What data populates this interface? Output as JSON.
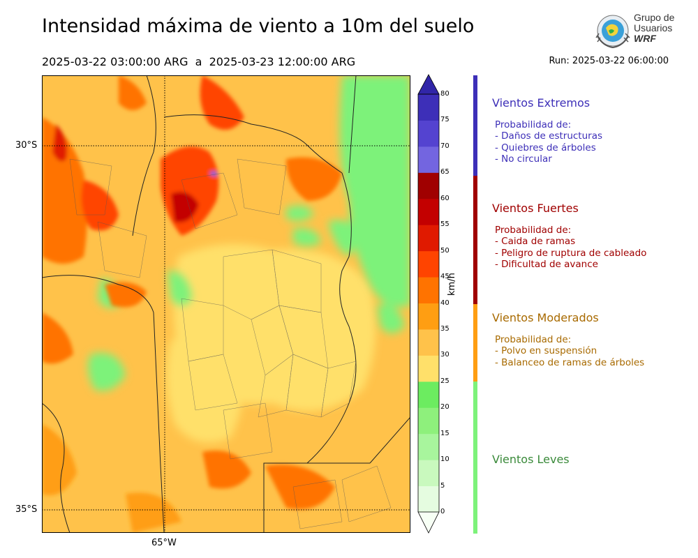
{
  "title": "Intensidad máxima de viento a 10m del suelo",
  "period": "2025-03-22 03:00:00 ARG  a  2025-03-23 12:00:00 ARG",
  "run": "Run: 2025-03-22 06:00:00",
  "logo": {
    "line1": "Grupo de",
    "line2": "Usuarios",
    "line3": "WRF"
  },
  "map": {
    "lat_labels": [
      "30°S",
      "35°S"
    ],
    "lon_labels": [
      "65°W"
    ]
  },
  "colorbar": {
    "unit": "km/h",
    "ticks": [
      "0",
      "5",
      "10",
      "15",
      "20",
      "25",
      "30",
      "35",
      "40",
      "45",
      "50",
      "55",
      "60",
      "65",
      "70",
      "75",
      "80"
    ],
    "colors": [
      "#f7fff5",
      "#e5fce0",
      "#c9f9be",
      "#a8f59d",
      "#8ef07c",
      "#6cec60",
      "#ffe06a",
      "#ffc24a",
      "#ff9e12",
      "#ff7300",
      "#ff4400",
      "#e01a00",
      "#c30000",
      "#a00000",
      "#7365e0",
      "#5443d0",
      "#3d2fb8"
    ],
    "over_color": "#3126a8"
  },
  "categories": [
    {
      "name": "Vientos Extremos",
      "color": "#3d2fb8",
      "intro": "Probabilidad de:",
      "items": [
        "- Daños de estructuras",
        "- Quiebres de árboles",
        "- No circular"
      ]
    },
    {
      "name": "Vientos Fuertes",
      "color": "#a00000",
      "intro": "Probabilidad de:",
      "items": [
        "- Caida de ramas",
        "- Peligro de ruptura de cableado",
        "- Dificultad de avance"
      ]
    },
    {
      "name": "Vientos Moderados",
      "color": "#a86a00",
      "intro": "Probabilidad de:",
      "items": [
        "- Polvo en suspensión",
        "- Balanceo de ramas de árboles"
      ]
    },
    {
      "name": "Vientos Leves",
      "color": "#3a8a3a",
      "intro": "",
      "items": []
    }
  ],
  "category_bar_colors": [
    "#3d2fb8",
    "#a00000",
    "#ff9e12",
    "#7df27a"
  ]
}
